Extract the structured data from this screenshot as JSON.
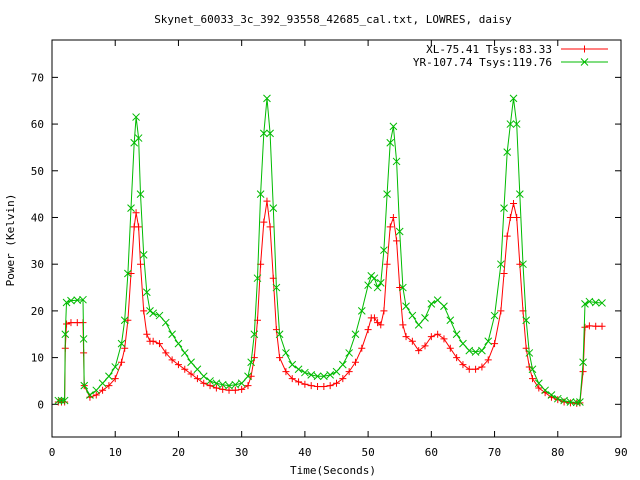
{
  "chart_data": {
    "type": "line",
    "title": "Skynet_60033_3c_392_93558_42685_cal.txt, LOWRES, daisy",
    "xlabel": "Time(Seconds)",
    "ylabel": "Power (Kelvin)",
    "xlim": [
      0,
      90
    ],
    "ylim": [
      -7,
      78
    ],
    "xticks": [
      0,
      10,
      20,
      30,
      40,
      50,
      60,
      70,
      80,
      90
    ],
    "yticks": [
      0,
      10,
      20,
      30,
      40,
      50,
      60,
      70
    ],
    "legend_position": "top-right",
    "grid": false,
    "series": [
      {
        "name": "XL-75.41 Tsys:83.33",
        "color": "#ff0000",
        "marker": "plus",
        "points": [
          [
            1.0,
            0.5
          ],
          [
            1.5,
            0.5
          ],
          [
            2.0,
            0.5
          ],
          [
            2.1,
            12
          ],
          [
            2.3,
            17.2
          ],
          [
            3.0,
            17.5
          ],
          [
            4.0,
            17.5
          ],
          [
            4.9,
            17.5
          ],
          [
            5.0,
            11
          ],
          [
            5.1,
            4
          ],
          [
            6,
            1.5
          ],
          [
            7,
            2
          ],
          [
            8,
            3
          ],
          [
            9,
            4
          ],
          [
            10,
            5.5
          ],
          [
            11,
            9
          ],
          [
            11.5,
            12
          ],
          [
            12,
            18
          ],
          [
            12.5,
            28
          ],
          [
            13,
            38
          ],
          [
            13.3,
            41
          ],
          [
            13.7,
            38
          ],
          [
            14,
            30
          ],
          [
            14.5,
            20
          ],
          [
            15,
            15
          ],
          [
            15.5,
            13.5
          ],
          [
            16,
            13.5
          ],
          [
            17,
            13
          ],
          [
            18,
            11
          ],
          [
            19,
            9.5
          ],
          [
            20,
            8.5
          ],
          [
            21,
            7.5
          ],
          [
            22,
            6.5
          ],
          [
            23,
            5.5
          ],
          [
            24,
            4.5
          ],
          [
            25,
            4
          ],
          [
            26,
            3.5
          ],
          [
            27,
            3.2
          ],
          [
            28,
            3
          ],
          [
            29,
            3
          ],
          [
            30,
            3.2
          ],
          [
            31,
            4
          ],
          [
            31.5,
            6
          ],
          [
            32,
            10
          ],
          [
            32.5,
            18
          ],
          [
            33,
            30
          ],
          [
            33.5,
            39
          ],
          [
            34,
            43.5
          ],
          [
            34.5,
            38
          ],
          [
            35,
            27
          ],
          [
            35.5,
            16
          ],
          [
            36,
            10
          ],
          [
            37,
            7
          ],
          [
            38,
            5.5
          ],
          [
            39,
            4.8
          ],
          [
            40,
            4.3
          ],
          [
            41,
            4
          ],
          [
            42,
            3.8
          ],
          [
            43,
            3.8
          ],
          [
            44,
            4
          ],
          [
            45,
            4.5
          ],
          [
            46,
            5.5
          ],
          [
            47,
            7
          ],
          [
            48,
            9
          ],
          [
            49,
            12
          ],
          [
            50,
            16
          ],
          [
            50.5,
            18.5
          ],
          [
            51,
            18.5
          ],
          [
            51.5,
            17.5
          ],
          [
            52,
            17
          ],
          [
            52.5,
            20
          ],
          [
            53,
            30
          ],
          [
            53.5,
            38
          ],
          [
            54,
            40
          ],
          [
            54.5,
            35
          ],
          [
            55,
            25
          ],
          [
            55.5,
            17
          ],
          [
            56,
            14.5
          ],
          [
            57,
            13.5
          ],
          [
            58,
            11.5
          ],
          [
            59,
            12.5
          ],
          [
            60,
            14.5
          ],
          [
            61,
            15
          ],
          [
            62,
            14
          ],
          [
            63,
            12
          ],
          [
            64,
            10
          ],
          [
            65,
            8.5
          ],
          [
            66,
            7.5
          ],
          [
            67,
            7.5
          ],
          [
            68,
            8
          ],
          [
            69,
            9.5
          ],
          [
            70,
            13
          ],
          [
            71,
            20
          ],
          [
            71.5,
            28
          ],
          [
            72,
            36
          ],
          [
            72.5,
            40
          ],
          [
            73,
            43
          ],
          [
            73.5,
            40
          ],
          [
            74,
            30
          ],
          [
            74.5,
            20
          ],
          [
            75,
            12
          ],
          [
            75.5,
            8
          ],
          [
            76,
            5.5
          ],
          [
            77,
            3.5
          ],
          [
            78,
            2.5
          ],
          [
            79,
            1.5
          ],
          [
            80,
            1
          ],
          [
            81,
            0.5
          ],
          [
            82,
            0.3
          ],
          [
            83,
            0.2
          ],
          [
            83.5,
            0.3
          ],
          [
            84,
            7
          ],
          [
            84.3,
            16.5
          ],
          [
            85,
            16.8
          ],
          [
            86,
            16.7
          ],
          [
            87,
            16.7
          ]
        ]
      },
      {
        "name": "YR-107.74 Tsys:119.76",
        "color": "#00bb00",
        "marker": "cross",
        "points": [
          [
            1.0,
            0.8
          ],
          [
            1.5,
            0.8
          ],
          [
            2.0,
            0.8
          ],
          [
            2.1,
            15
          ],
          [
            2.3,
            21.8
          ],
          [
            3.0,
            22.2
          ],
          [
            4.0,
            22.3
          ],
          [
            4.9,
            22.4
          ],
          [
            5.0,
            14
          ],
          [
            5.1,
            4
          ],
          [
            6,
            2
          ],
          [
            7,
            3
          ],
          [
            8,
            4.5
          ],
          [
            9,
            6
          ],
          [
            10,
            8
          ],
          [
            11,
            13
          ],
          [
            11.5,
            18
          ],
          [
            12,
            28
          ],
          [
            12.5,
            42
          ],
          [
            13,
            56
          ],
          [
            13.3,
            61.5
          ],
          [
            13.7,
            57
          ],
          [
            14,
            45
          ],
          [
            14.5,
            32
          ],
          [
            15,
            24
          ],
          [
            15.5,
            20
          ],
          [
            16,
            19.5
          ],
          [
            17,
            19
          ],
          [
            18,
            17.5
          ],
          [
            19,
            15
          ],
          [
            20,
            13
          ],
          [
            21,
            11
          ],
          [
            22,
            9
          ],
          [
            23,
            7.5
          ],
          [
            24,
            6
          ],
          [
            25,
            5
          ],
          [
            26,
            4.5
          ],
          [
            27,
            4.2
          ],
          [
            28,
            4
          ],
          [
            29,
            4.2
          ],
          [
            30,
            4.5
          ],
          [
            31,
            6
          ],
          [
            31.5,
            9
          ],
          [
            32,
            15
          ],
          [
            32.5,
            27
          ],
          [
            33,
            45
          ],
          [
            33.5,
            58
          ],
          [
            34,
            65.5
          ],
          [
            34.5,
            58
          ],
          [
            35,
            42
          ],
          [
            35.5,
            25
          ],
          [
            36,
            15
          ],
          [
            37,
            11
          ],
          [
            38,
            8.5
          ],
          [
            39,
            7.5
          ],
          [
            40,
            6.8
          ],
          [
            41,
            6.3
          ],
          [
            42,
            6
          ],
          [
            43,
            6
          ],
          [
            44,
            6.3
          ],
          [
            45,
            7
          ],
          [
            46,
            8.5
          ],
          [
            47,
            11
          ],
          [
            48,
            15
          ],
          [
            49,
            20
          ],
          [
            50,
            25.5
          ],
          [
            50.5,
            27.5
          ],
          [
            51,
            27
          ],
          [
            51.5,
            25
          ],
          [
            52,
            26
          ],
          [
            52.5,
            33
          ],
          [
            53,
            45
          ],
          [
            53.5,
            56
          ],
          [
            54,
            59.5
          ],
          [
            54.5,
            52
          ],
          [
            55,
            37
          ],
          [
            55.5,
            25
          ],
          [
            56,
            21
          ],
          [
            57,
            19
          ],
          [
            58,
            17
          ],
          [
            59,
            18.5
          ],
          [
            60,
            21.5
          ],
          [
            61,
            22.3
          ],
          [
            62,
            21
          ],
          [
            63,
            18
          ],
          [
            64,
            15
          ],
          [
            65,
            13
          ],
          [
            66,
            11.5
          ],
          [
            67,
            11.2
          ],
          [
            68,
            11.5
          ],
          [
            69,
            13.5
          ],
          [
            70,
            19
          ],
          [
            71,
            30
          ],
          [
            71.5,
            42
          ],
          [
            72,
            54
          ],
          [
            72.5,
            60
          ],
          [
            73,
            65.5
          ],
          [
            73.5,
            60
          ],
          [
            74,
            45
          ],
          [
            74.5,
            30
          ],
          [
            75,
            18
          ],
          [
            75.5,
            11
          ],
          [
            76,
            7.5
          ],
          [
            77,
            4.5
          ],
          [
            78,
            3
          ],
          [
            79,
            2
          ],
          [
            80,
            1.2
          ],
          [
            81,
            0.8
          ],
          [
            82,
            0.5
          ],
          [
            83,
            0.4
          ],
          [
            83.5,
            0.5
          ],
          [
            84,
            9
          ],
          [
            84.3,
            21.5
          ],
          [
            85,
            22
          ],
          [
            86,
            21.8
          ],
          [
            87,
            21.7
          ]
        ]
      }
    ]
  }
}
